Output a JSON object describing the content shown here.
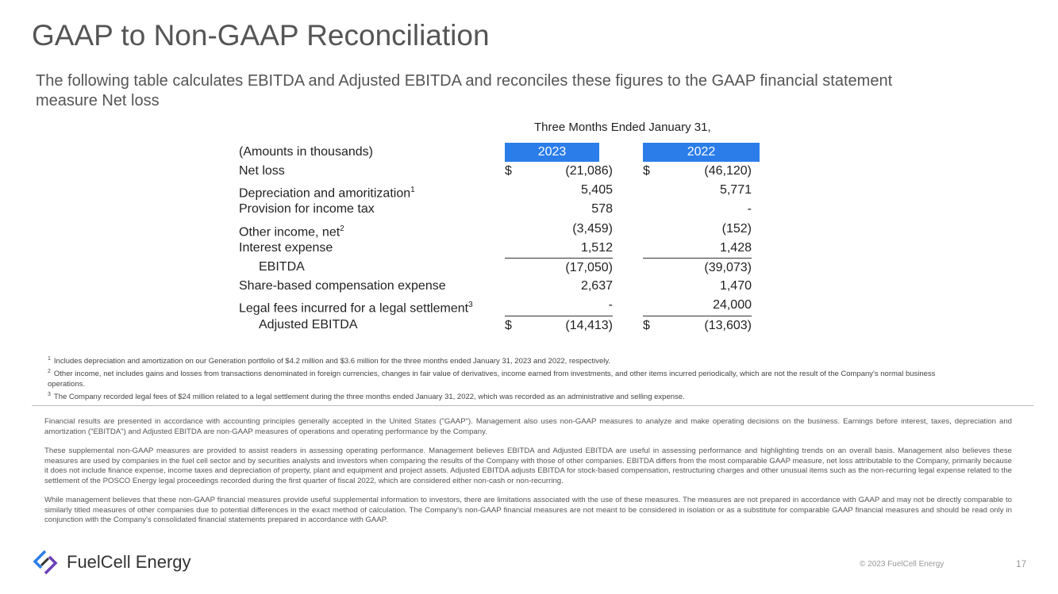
{
  "title": "GAAP to Non-GAAP Reconciliation",
  "subtitle": "The following table calculates EBITDA and Adjusted EBITDA and reconciles these figures to the GAAP financial statement measure Net loss",
  "table": {
    "period_header": "Three Months Ended January 31,",
    "units_label": "(Amounts in thousands)",
    "columns": [
      "2023",
      "2022"
    ],
    "rows": [
      {
        "label": "Net loss",
        "currency": "$",
        "cells": [
          "(21,086)",
          "(46,120)"
        ]
      },
      {
        "label": "Depreciation and amoritization",
        "note": "1",
        "cells": [
          "5,405",
          "5,771"
        ]
      },
      {
        "label": "Provision for income tax",
        "cells": [
          "578",
          "-"
        ]
      },
      {
        "label": "Other income, net",
        "note": "2",
        "cells": [
          "(3,459)",
          "(152)"
        ]
      },
      {
        "label": "Interest expense",
        "cells": [
          "1,512",
          "1,428"
        ]
      },
      {
        "label": "EBITDA",
        "cells": [
          "(17,050)",
          "(39,073)"
        ]
      },
      {
        "label": "Share-based compensation expense",
        "cells": [
          "2,637",
          "1,470"
        ]
      },
      {
        "label": "Legal fees incurred for a legal settlement",
        "note": "3",
        "cells": [
          "-",
          "24,000"
        ]
      },
      {
        "label": "Adjusted EBITDA",
        "currency": "$",
        "cells": [
          "(14,413)",
          "(13,603)"
        ]
      }
    ]
  },
  "footnotes": [
    {
      "marker": "1",
      "text": "Includes depreciation and amortization on our Generation portfolio of $4.2 million and $3.6 million for the three months ended January 31, 2023 and 2022, respectively."
    },
    {
      "marker": "2",
      "text": "Other income, net includes gains and losses from transactions denominated in foreign currencies, changes in fair value of derivatives, income earned from investments, and other items incurred periodically, which are not the result of the Company's normal business operations."
    },
    {
      "marker": "3",
      "text": "The Company recorded legal fees of $24 million related to a legal settlement during the three months ended January 31, 2022, which was recorded as an administrative and selling expense."
    }
  ],
  "disclaimer": [
    "Financial results are presented in accordance with accounting principles generally accepted in the United States (\"GAAP\"). Management also uses non-GAAP measures to analyze and make operating decisions on the business. Earnings before interest, taxes, depreciation and amortization (\"EBITDA\") and Adjusted EBITDA are non-GAAP measures of operations and operating performance by the Company.",
    "These supplemental non-GAAP measures are provided to assist readers in assessing operating performance. Management believes EBITDA and Adjusted EBITDA are useful in assessing performance and highlighting trends on an overall basis. Management also believes these measures are used by companies in the fuel cell sector and by securities analysts and investors when comparing the results of the Company with those of other companies. EBITDA differs from the most comparable GAAP measure, net loss attributable to the Company, primarily because it does not include finance expense, income taxes and depreciation of property, plant and equipment and project assets. Adjusted EBITDA adjusts EBITDA for stock-based compensation, restructuring charges and other unusual items such as the non-recurring legal expense related to the settlement of the POSCO Energy legal proceedings recorded during the first quarter of fiscal 2022, which are considered either non-cash or non-recurring.",
    "While management believes that these non-GAAP financial measures provide useful supplemental information to investors, there are limitations associated with the use of these measures. The measures are not prepared in accordance with GAAP and may not be directly comparable to similarly titled measures of other companies due to potential differences in the exact method of calculation. The Company's non-GAAP financial measures are not meant to be considered in isolation or as a substitute for comparable GAAP financial measures and should be read only in conjunction with the Company's consolidated financial statements prepared in accordance with GAAP."
  ],
  "footer": {
    "logo": "FuelCell Energy",
    "copyright": "© 2023 FuelCell Energy",
    "page": "17"
  }
}
